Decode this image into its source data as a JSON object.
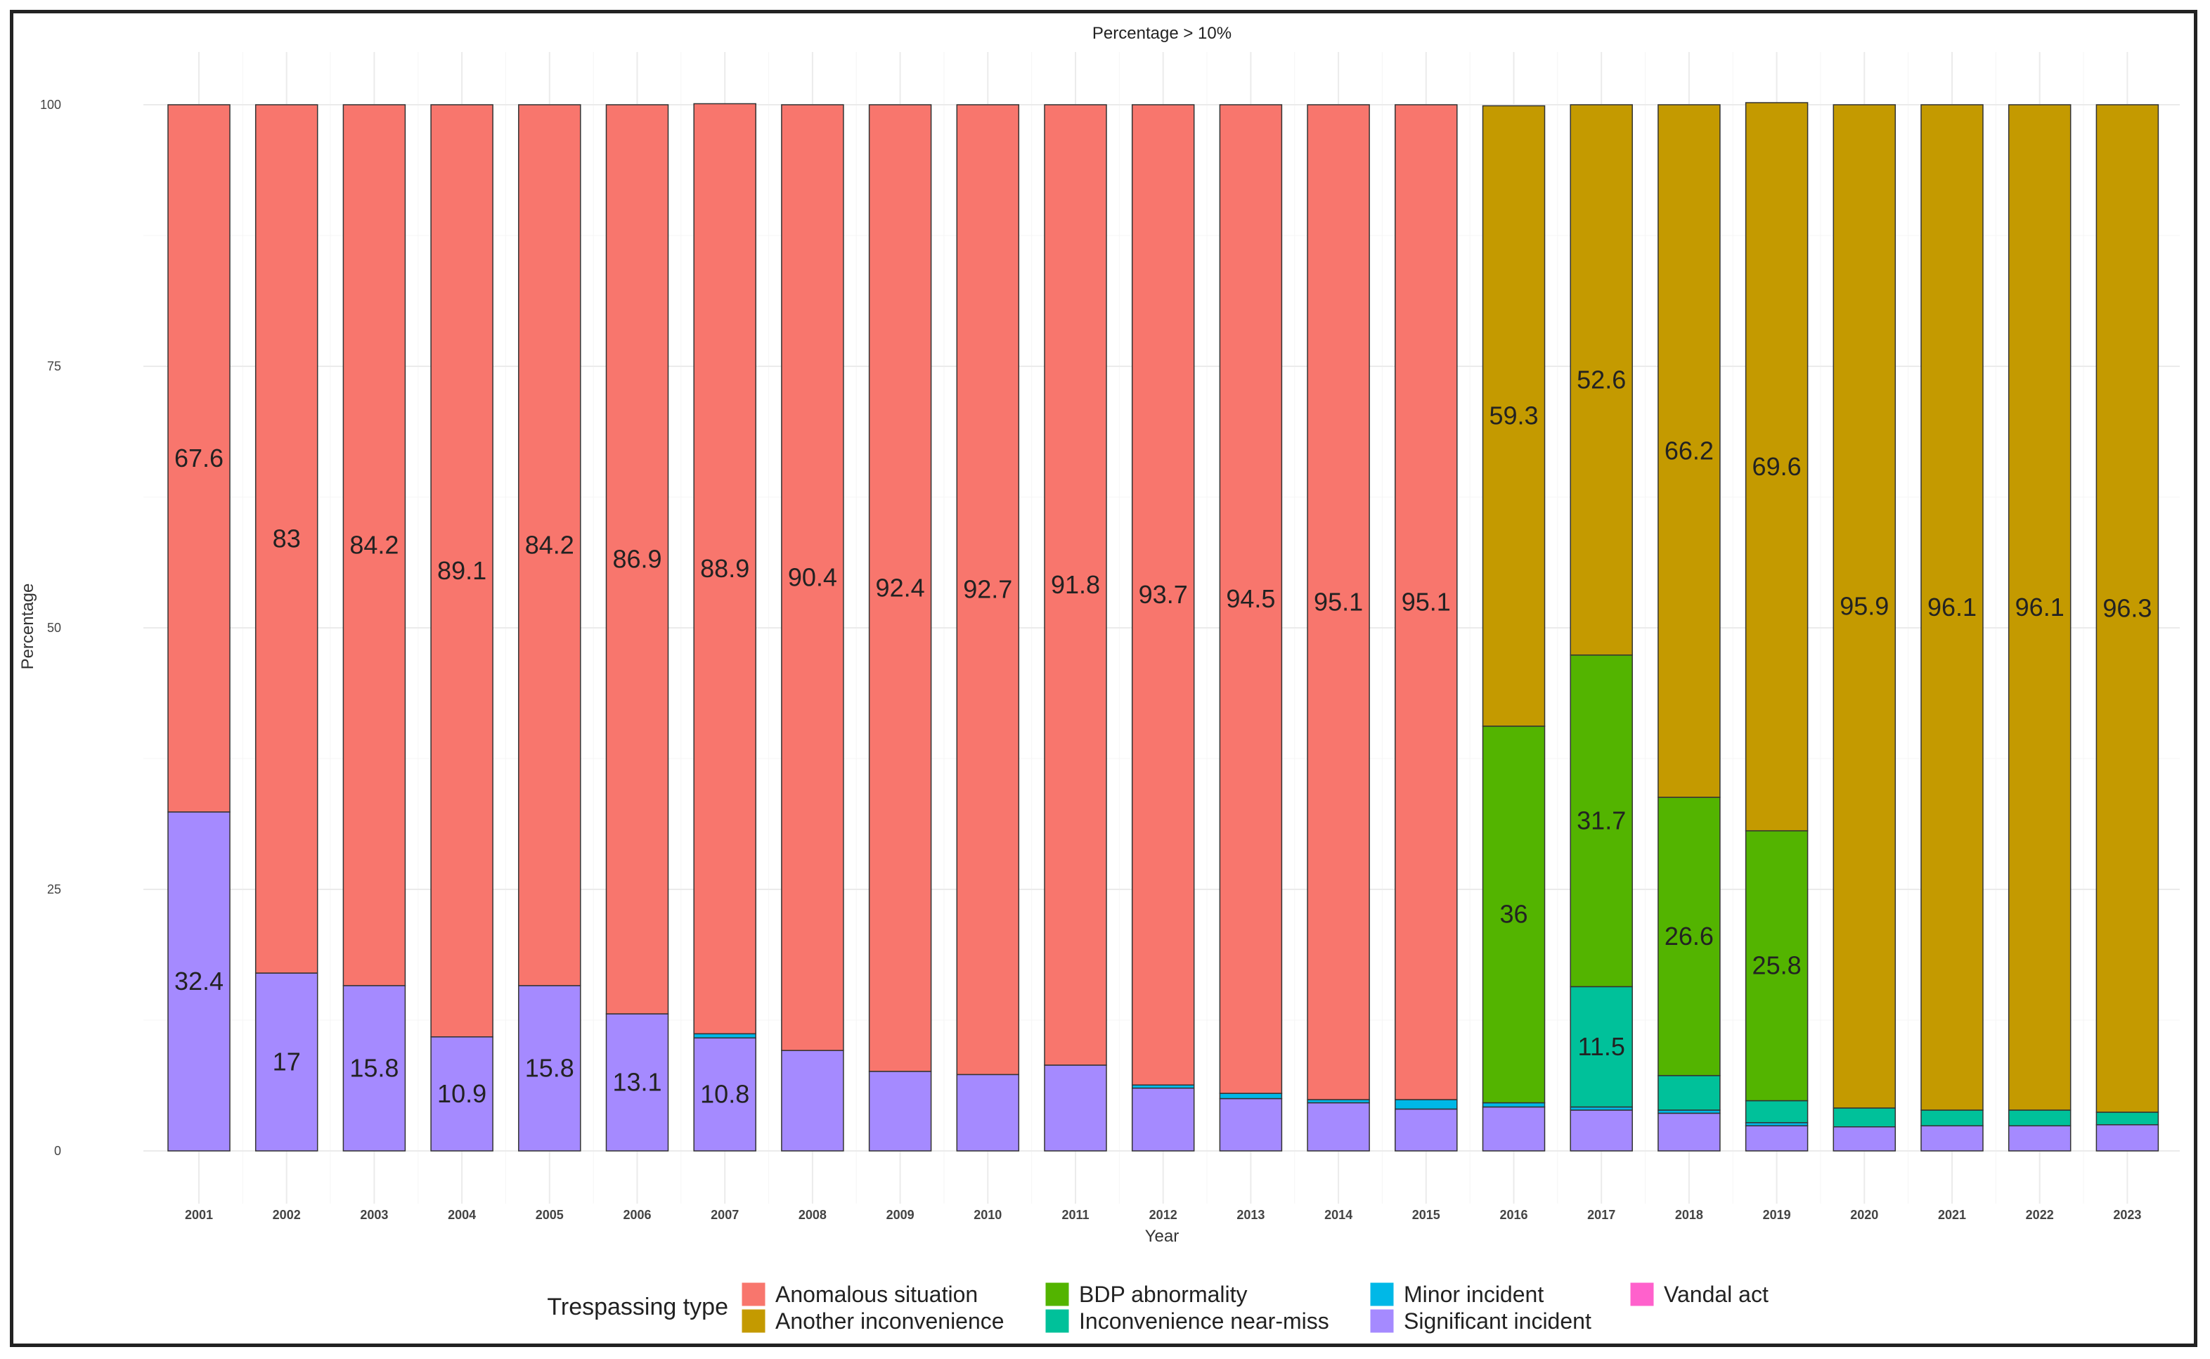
{
  "chart_data": {
    "type": "bar",
    "stacked": true,
    "title": "Percentage > 10%",
    "xlabel": "Year",
    "ylabel": "Percentage",
    "ylim": [
      0,
      100
    ],
    "yticks": [
      0,
      25,
      50,
      75,
      100
    ],
    "categories": [
      "2001",
      "2002",
      "2003",
      "2004",
      "2005",
      "2006",
      "2007",
      "2008",
      "2009",
      "2010",
      "2011",
      "2012",
      "2013",
      "2014",
      "2015",
      "2016",
      "2017",
      "2018",
      "2019",
      "2020",
      "2021",
      "2022",
      "2023"
    ],
    "series": [
      {
        "name": "Vandal act",
        "color": "#FF61CC",
        "values": [
          0,
          0,
          0,
          0,
          0,
          0,
          0,
          0,
          0,
          0,
          0,
          0,
          0,
          0,
          0,
          0,
          0,
          0,
          0,
          0,
          0,
          0,
          0
        ]
      },
      {
        "name": "Significant incident",
        "color": "#A58AFF",
        "values": [
          32.4,
          17,
          15.8,
          10.9,
          15.8,
          13.1,
          10.8,
          9.6,
          7.6,
          7.3,
          8.2,
          6.0,
          5.0,
          4.6,
          4.0,
          4.2,
          3.9,
          3.6,
          2.4,
          2.3,
          2.4,
          2.4,
          2.5
        ]
      },
      {
        "name": "Minor incident",
        "color": "#00B8E7",
        "values": [
          0,
          0,
          0,
          0,
          0,
          0,
          0.4,
          0,
          0,
          0,
          0,
          0.3,
          0.5,
          0.3,
          0.9,
          0.4,
          0.3,
          0.3,
          0.3,
          0,
          0,
          0,
          0
        ]
      },
      {
        "name": "Inconvenience near-miss",
        "color": "#00C19A",
        "values": [
          0,
          0,
          0,
          0,
          0,
          0,
          0,
          0,
          0,
          0,
          0,
          0,
          0,
          0,
          0,
          0,
          11.5,
          3.3,
          2.1,
          1.8,
          1.5,
          1.5,
          1.2
        ]
      },
      {
        "name": "BDP abnormality",
        "color": "#53B400",
        "values": [
          0,
          0,
          0,
          0,
          0,
          0,
          0,
          0,
          0,
          0,
          0,
          0,
          0,
          0,
          0,
          36,
          31.7,
          26.6,
          25.8,
          0,
          0,
          0,
          0
        ]
      },
      {
        "name": "Another inconvenience",
        "color": "#C49A00",
        "values": [
          0,
          0,
          0,
          0,
          0,
          0,
          0,
          0,
          0,
          0,
          0,
          0,
          0,
          0,
          0,
          59.3,
          52.6,
          66.2,
          69.6,
          95.9,
          96.1,
          96.1,
          96.3
        ]
      },
      {
        "name": "Anomalous situation",
        "color": "#F8766D",
        "values": [
          67.6,
          83,
          84.2,
          89.1,
          84.2,
          86.9,
          88.9,
          90.4,
          92.4,
          92.7,
          91.8,
          93.7,
          94.5,
          95.1,
          95.1,
          0,
          0,
          0,
          0,
          0,
          0,
          0,
          0
        ]
      }
    ],
    "data_labels": [
      {
        "category": "2001",
        "series": "Anomalous situation",
        "text": "67.6"
      },
      {
        "category": "2001",
        "series": "Significant incident",
        "text": "32.4"
      },
      {
        "category": "2002",
        "series": "Anomalous situation",
        "text": "83"
      },
      {
        "category": "2002",
        "series": "Significant incident",
        "text": "17"
      },
      {
        "category": "2003",
        "series": "Anomalous situation",
        "text": "84.2"
      },
      {
        "category": "2003",
        "series": "Significant incident",
        "text": "15.8"
      },
      {
        "category": "2004",
        "series": "Anomalous situation",
        "text": "89.1"
      },
      {
        "category": "2004",
        "series": "Significant incident",
        "text": "10.9"
      },
      {
        "category": "2005",
        "series": "Anomalous situation",
        "text": "84.2"
      },
      {
        "category": "2005",
        "series": "Significant incident",
        "text": "15.8"
      },
      {
        "category": "2006",
        "series": "Anomalous situation",
        "text": "86.9"
      },
      {
        "category": "2006",
        "series": "Significant incident",
        "text": "13.1"
      },
      {
        "category": "2007",
        "series": "Anomalous situation",
        "text": "88.9"
      },
      {
        "category": "2007",
        "series": "Significant incident",
        "text": "10.8"
      },
      {
        "category": "2008",
        "series": "Anomalous situation",
        "text": "90.4"
      },
      {
        "category": "2009",
        "series": "Anomalous situation",
        "text": "92.4"
      },
      {
        "category": "2010",
        "series": "Anomalous situation",
        "text": "92.7"
      },
      {
        "category": "2011",
        "series": "Anomalous situation",
        "text": "91.8"
      },
      {
        "category": "2012",
        "series": "Anomalous situation",
        "text": "93.7"
      },
      {
        "category": "2013",
        "series": "Anomalous situation",
        "text": "94.5"
      },
      {
        "category": "2014",
        "series": "Anomalous situation",
        "text": "95.1"
      },
      {
        "category": "2015",
        "series": "Anomalous situation",
        "text": "95.1"
      },
      {
        "category": "2016",
        "series": "Another inconvenience",
        "text": "59.3"
      },
      {
        "category": "2016",
        "series": "BDP abnormality",
        "text": "36"
      },
      {
        "category": "2017",
        "series": "Another inconvenience",
        "text": "52.6"
      },
      {
        "category": "2017",
        "series": "BDP abnormality",
        "text": "31.7"
      },
      {
        "category": "2017",
        "series": "Inconvenience near-miss",
        "text": "11.5"
      },
      {
        "category": "2018",
        "series": "Another inconvenience",
        "text": "66.2"
      },
      {
        "category": "2018",
        "series": "BDP abnormality",
        "text": "26.6"
      },
      {
        "category": "2019",
        "series": "Another inconvenience",
        "text": "69.6"
      },
      {
        "category": "2019",
        "series": "BDP abnormality",
        "text": "25.8"
      },
      {
        "category": "2020",
        "series": "Another inconvenience",
        "text": "95.9"
      },
      {
        "category": "2021",
        "series": "Another inconvenience",
        "text": "96.1"
      },
      {
        "category": "2022",
        "series": "Another inconvenience",
        "text": "96.1"
      },
      {
        "category": "2023",
        "series": "Another inconvenience",
        "text": "96.3"
      }
    ],
    "legend": {
      "title": "Trespassing type",
      "position": "bottom",
      "items": [
        {
          "label": "Anomalous situation",
          "color": "#F8766D"
        },
        {
          "label": "Another inconvenience",
          "color": "#C49A00"
        },
        {
          "label": "BDP abnormality",
          "color": "#53B400"
        },
        {
          "label": "Inconvenience near-miss",
          "color": "#00C19A"
        },
        {
          "label": "Minor incident",
          "color": "#00B8E7"
        },
        {
          "label": "Significant incident",
          "color": "#A58AFF"
        },
        {
          "label": "Vandal act",
          "color": "#FF61CC"
        }
      ]
    },
    "grid": true
  }
}
